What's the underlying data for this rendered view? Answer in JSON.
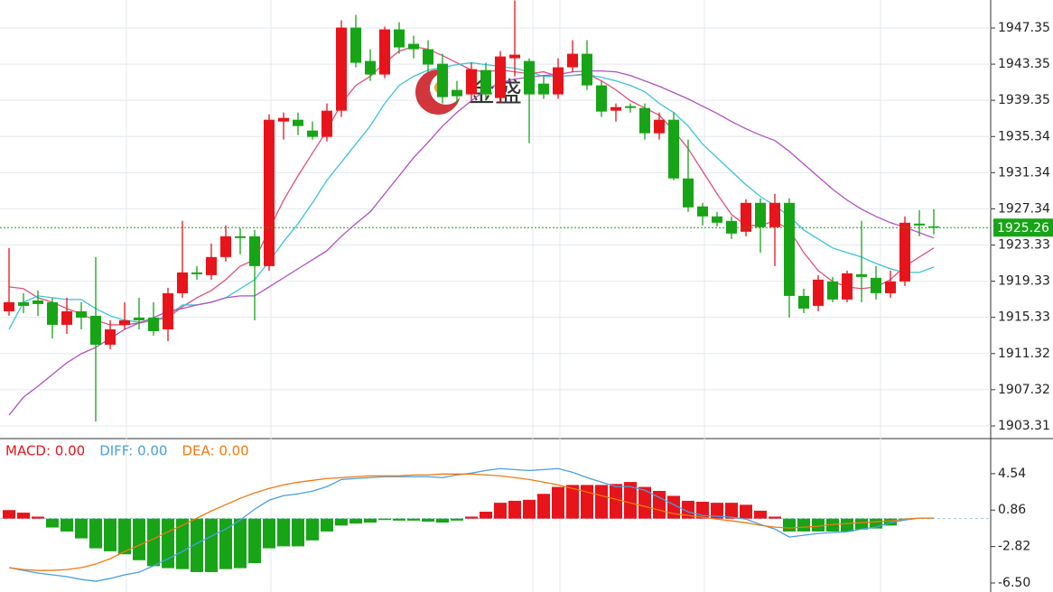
{
  "chart_data": [
    {
      "type": "candlestick",
      "watermark": "金盛",
      "up_color": "#e8141b",
      "down_color": "#17a417",
      "open": [
        1916.0,
        1917.0,
        1917.2,
        1917.0,
        1914.5,
        1916.0,
        1915.5,
        1912.3,
        1914.5,
        1915.3,
        1915.3,
        1914.0,
        1918.0,
        1920.3,
        1920.0,
        1922.0,
        1924.3,
        1924.3,
        1921.0,
        1937.0,
        1937.2,
        1936.0,
        1935.3,
        1938.2,
        1947.4,
        1943.7,
        1942.2,
        1947.2,
        1945.6,
        1945.0,
        1943.4,
        1940.5,
        1940.0,
        1942.7,
        1939.6,
        1944.0,
        1943.7,
        1941.2,
        1940.0,
        1943.0,
        1944.5,
        1941.0,
        1938.2,
        1938.7,
        1938.5,
        1935.7,
        1937.2,
        1930.7,
        1927.6,
        1926.5,
        1926.0,
        1924.8,
        1928.0,
        1925.3,
        1928.0,
        1917.7,
        1916.6,
        1919.3,
        1917.3,
        1920.1,
        1919.7,
        1918.0,
        1919.3,
        1925.7,
        1925.4
      ],
      "high": [
        1923.0,
        1918.0,
        1918.3,
        1917.5,
        1917.5,
        1917.0,
        1922.0,
        1915.0,
        1917.0,
        1917.5,
        1917.0,
        1918.6,
        1926.0,
        1921.0,
        1923.5,
        1925.5,
        1925.2,
        1925.0,
        1937.8,
        1938.0,
        1938.0,
        1937.0,
        1939.0,
        1948.2,
        1948.8,
        1945.0,
        1947.5,
        1948.0,
        1946.5,
        1946.0,
        1944.5,
        1941.5,
        1943.5,
        1943.5,
        1944.8,
        1950.4,
        1944.0,
        1942.0,
        1944.0,
        1946.0,
        1946.0,
        1941.5,
        1939.0,
        1939.0,
        1939.0,
        1938.0,
        1938.0,
        1935.0,
        1928.0,
        1927.0,
        1926.5,
        1928.4,
        1928.5,
        1929.0,
        1928.5,
        1918.5,
        1920.0,
        1919.8,
        1920.5,
        1926.0,
        1921.0,
        1920.5,
        1926.5,
        1927.2,
        1927.3
      ],
      "low": [
        1915.5,
        1915.8,
        1915.5,
        1913.0,
        1913.5,
        1914.0,
        1903.8,
        1911.8,
        1914.0,
        1914.0,
        1913.3,
        1912.7,
        1917.5,
        1919.5,
        1919.5,
        1921.5,
        1922.3,
        1915.0,
        1920.5,
        1935.0,
        1935.5,
        1935.0,
        1934.8,
        1937.5,
        1943.0,
        1941.5,
        1941.8,
        1944.5,
        1944.0,
        1942.5,
        1939.0,
        1939.0,
        1939.3,
        1939.5,
        1939.0,
        1942.0,
        1934.6,
        1939.5,
        1939.5,
        1942.5,
        1940.5,
        1937.5,
        1937.0,
        1938.0,
        1935.0,
        1935.0,
        1930.5,
        1927.0,
        1925.5,
        1925.4,
        1924.0,
        1924.3,
        1922.5,
        1921.0,
        1915.3,
        1915.8,
        1916.0,
        1917.0,
        1917.0,
        1917.0,
        1917.3,
        1917.5,
        1918.8,
        1924.3,
        1924.5
      ],
      "close": [
        1917.0,
        1916.6,
        1916.8,
        1914.5,
        1916.0,
        1915.3,
        1912.3,
        1914.0,
        1915.0,
        1915.0,
        1913.8,
        1918.0,
        1920.3,
        1920.1,
        1922.0,
        1924.3,
        1924.1,
        1921.0,
        1937.2,
        1937.4,
        1936.5,
        1935.3,
        1938.2,
        1947.4,
        1943.5,
        1942.2,
        1947.2,
        1945.2,
        1945.0,
        1943.3,
        1939.7,
        1939.8,
        1942.8,
        1940.0,
        1944.2,
        1944.4,
        1940.0,
        1940.0,
        1943.0,
        1944.5,
        1941.0,
        1938.1,
        1938.6,
        1938.5,
        1935.7,
        1937.2,
        1930.7,
        1927.5,
        1926.5,
        1925.8,
        1924.6,
        1928.0,
        1925.3,
        1928.0,
        1917.7,
        1916.3,
        1919.5,
        1917.3,
        1920.2,
        1919.8,
        1918.0,
        1919.3,
        1925.8,
        1925.5,
        1925.26
      ],
      "series": [
        {
          "color": "#e0507a",
          "values": [
            1918.7,
            1918.5,
            1917.5,
            1917.0,
            1916.3,
            1915.7,
            1915.0,
            1914.5,
            1914.5,
            1914.7,
            1915.0,
            1915.3,
            1916.5,
            1917.5,
            1918.3,
            1919.5,
            1921.0,
            1921.7,
            1925.0,
            1928.3,
            1931.0,
            1933.5,
            1936.0,
            1939.0,
            1941.0,
            1942.0,
            1943.5,
            1944.8,
            1945.3,
            1945.0,
            1944.3,
            1943.5,
            1942.7,
            1942.5,
            1942.7,
            1942.5,
            1942.3,
            1942.5,
            1942.0,
            1942.1,
            1942.3,
            1941.5,
            1940.5,
            1939.3,
            1938.5,
            1937.7,
            1936.0,
            1934.0,
            1931.5,
            1929.0,
            1926.7,
            1925.5,
            1925.5,
            1926.0,
            1925.0,
            1922.5,
            1920.5,
            1919.3,
            1918.7,
            1918.5,
            1918.7,
            1919.5,
            1921.0,
            1922.0,
            1923.0
          ]
        },
        {
          "color": "#3cc4d8",
          "values": [
            1914.0,
            1917.0,
            1917.7,
            1917.5,
            1917.3,
            1917.3,
            1916.3,
            1915.5,
            1915.0,
            1914.8,
            1915.0,
            1915.5,
            1916.7,
            1916.7,
            1917.0,
            1917.5,
            1918.5,
            1919.5,
            1921.5,
            1923.7,
            1925.7,
            1928.0,
            1930.5,
            1932.5,
            1934.5,
            1936.5,
            1939.0,
            1941.0,
            1942.0,
            1942.7,
            1943.0,
            1943.3,
            1943.5,
            1943.3,
            1943.1,
            1942.9,
            1942.5,
            1942.0,
            1942.0,
            1942.1,
            1942.2,
            1941.9,
            1941.5,
            1941.0,
            1940.3,
            1939.0,
            1938.0,
            1936.5,
            1934.5,
            1933.0,
            1931.5,
            1930.0,
            1928.7,
            1927.7,
            1926.5,
            1925.0,
            1924.0,
            1923.0,
            1922.5,
            1922.0,
            1921.3,
            1920.7,
            1920.3,
            1920.3,
            1920.9
          ]
        },
        {
          "color": "#b050c0",
          "values": [
            1904.5,
            1906.5,
            1907.7,
            1909.0,
            1910.3,
            1911.3,
            1912.0,
            1913.0,
            1914.0,
            1914.7,
            1915.3,
            1916.0,
            1916.3,
            1916.7,
            1917.0,
            1917.5,
            1917.7,
            1917.7,
            1918.7,
            1919.7,
            1920.7,
            1921.7,
            1922.7,
            1924.3,
            1925.7,
            1927.0,
            1929.0,
            1931.0,
            1933.0,
            1934.7,
            1936.5,
            1938.0,
            1939.3,
            1940.5,
            1941.3,
            1941.7,
            1941.9,
            1942.1,
            1942.2,
            1942.5,
            1942.6,
            1942.6,
            1942.5,
            1942.1,
            1941.5,
            1940.9,
            1940.2,
            1939.5,
            1938.7,
            1937.9,
            1937.0,
            1936.2,
            1935.5,
            1934.9,
            1933.7,
            1932.3,
            1930.9,
            1929.5,
            1928.3,
            1927.3,
            1926.5,
            1925.8,
            1925.3,
            1924.7,
            1924.1
          ]
        }
      ],
      "last_price": 1925.26,
      "last_color": "#17a417",
      "ylim": [
        1902.01,
        1950.45
      ],
      "yticks": [
        1947.35,
        1943.35,
        1939.35,
        1935.34,
        1931.34,
        1927.34,
        1923.33,
        1919.33,
        1915.33,
        1911.32,
        1907.32,
        1903.31
      ],
      "grid": true
    },
    {
      "type": "macd",
      "ylim": [
        -7.41,
        7.99
      ],
      "yticks": [
        4.54,
        0.86,
        -2.82,
        {
          "value": -6.5,
          "label": "-6.50"
        }
      ],
      "series": [
        {
          "label": "MACD: 0.00",
          "color": "#e8141b",
          "up_color": "#e8141b",
          "down_color": "#17a417",
          "kind": "histogram",
          "values": [
            0.86,
            0.6,
            0.2,
            -0.9,
            -1.3,
            -2.0,
            -3.0,
            -3.3,
            -3.6,
            -4.2,
            -4.8,
            -5.0,
            -5.1,
            -5.4,
            -5.4,
            -5.1,
            -5.0,
            -4.5,
            -3.0,
            -2.8,
            -2.8,
            -2.2,
            -1.3,
            -0.7,
            -0.5,
            -0.4,
            -0.14,
            -0.2,
            -0.2,
            -0.3,
            -0.4,
            -0.2,
            0.2,
            0.7,
            1.6,
            1.8,
            1.9,
            2.5,
            3.2,
            3.4,
            3.4,
            3.4,
            3.5,
            3.7,
            3.2,
            2.8,
            2.3,
            1.8,
            1.7,
            1.6,
            1.6,
            1.4,
            0.8,
            0.2,
            -1.3,
            -1.3,
            -1.3,
            -1.3,
            -1.3,
            -1.1,
            -1.0,
            -0.7,
            -0.1,
            0,
            0
          ]
        },
        {
          "label": "DIFF: 0.00",
          "color": "#4a9fe0",
          "kind": "line",
          "values": [
            -4.95,
            -5.23,
            -5.5,
            -5.68,
            -5.86,
            -6.14,
            -6.32,
            -6.05,
            -5.68,
            -5.41,
            -4.77,
            -4.05,
            -3.32,
            -2.5,
            -1.77,
            -1.05,
            -0.14,
            0.95,
            1.86,
            2.32,
            2.5,
            2.77,
            3.23,
            3.95,
            4.05,
            4.14,
            4.23,
            4.23,
            4.23,
            4.23,
            4.14,
            4.41,
            4.59,
            4.86,
            5.05,
            4.95,
            4.86,
            4.95,
            5.05,
            4.68,
            4.14,
            3.68,
            3.23,
            3.23,
            2.86,
            2.14,
            1.41,
            0.68,
            0.32,
            0.23,
            0.14,
            -0.05,
            -0.59,
            -1.05,
            -1.86,
            -1.68,
            -1.5,
            -1.41,
            -1.32,
            -1.05,
            -0.86,
            -0.41,
            -0.14,
            0.05,
            0.05
          ]
        },
        {
          "label": "DEA: 0.00",
          "color": "#f07a10",
          "kind": "line",
          "values": [
            -4.95,
            -5.14,
            -5.23,
            -5.23,
            -5.14,
            -4.95,
            -4.59,
            -4.05,
            -3.32,
            -2.68,
            -2.05,
            -1.32,
            -0.68,
            0.05,
            0.77,
            1.41,
            2.05,
            2.59,
            3.05,
            3.41,
            3.68,
            3.86,
            4.05,
            4.14,
            4.23,
            4.32,
            4.32,
            4.32,
            4.41,
            4.41,
            4.5,
            4.5,
            4.5,
            4.41,
            4.32,
            4.14,
            3.95,
            3.68,
            3.41,
            3.05,
            2.68,
            2.32,
            1.95,
            1.59,
            1.23,
            0.86,
            0.5,
            0.32,
            0.14,
            -0.05,
            -0.23,
            -0.41,
            -0.68,
            -0.86,
            -0.95,
            -0.86,
            -0.77,
            -0.59,
            -0.5,
            -0.41,
            -0.32,
            -0.23,
            -0.05,
            0.05,
            0.05
          ]
        }
      ]
    }
  ]
}
